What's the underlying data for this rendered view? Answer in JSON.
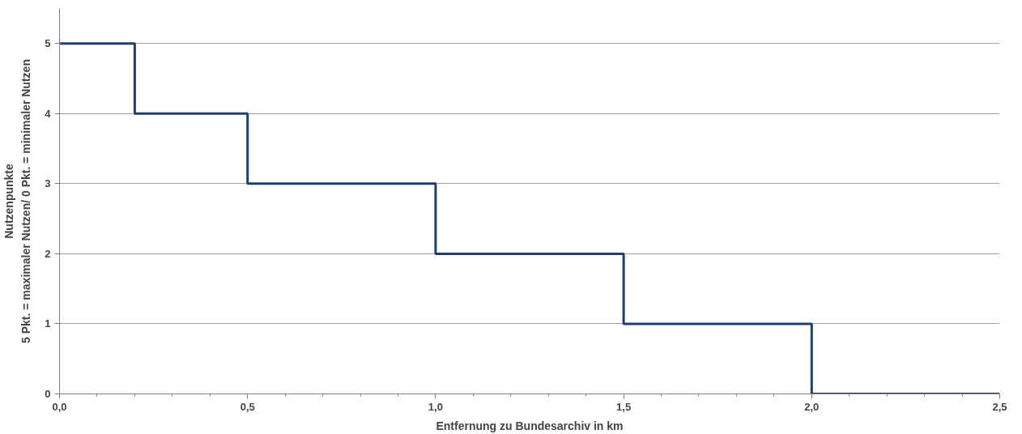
{
  "chart_data": {
    "type": "step",
    "xlabel": "Entfernung zu Bundesarchiv in km",
    "ylabel": "Nutzenpunkte\n5 Pkt. = maximaler Nutzen/ 0 Pkt. = minimaler Nutzen",
    "x": [
      0,
      0.2,
      0.5,
      1.0,
      1.5,
      2.0,
      2.5
    ],
    "series": [
      {
        "color": "#1f3e6e",
        "values": [
          5,
          4,
          3,
          2,
          1,
          0,
          0
        ]
      }
    ],
    "xlim": [
      0,
      2.5
    ],
    "ylim": [
      0,
      5.5
    ],
    "xticks": [
      {
        "value": 0,
        "label": "0,0"
      },
      {
        "value": 0.5,
        "label": "0,5"
      },
      {
        "value": 1.0,
        "label": "1,0"
      },
      {
        "value": 1.5,
        "label": "1,5"
      },
      {
        "value": 2.0,
        "label": "2,0"
      },
      {
        "value": 2.5,
        "label": "2,5"
      }
    ],
    "yticks": [
      0,
      1,
      2,
      3,
      4,
      5
    ],
    "grid": "y",
    "marker": "none",
    "line_style": "solid"
  }
}
